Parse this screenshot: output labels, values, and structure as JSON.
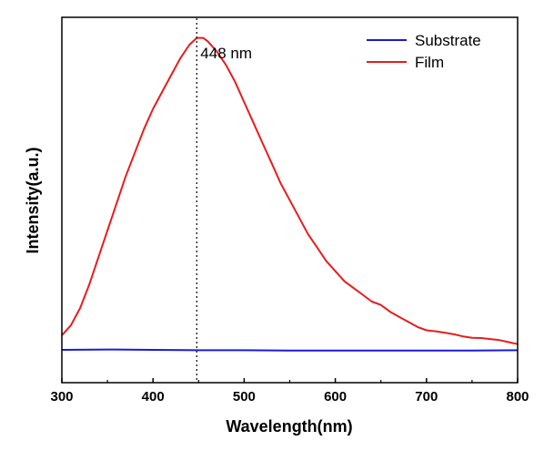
{
  "chart_data": {
    "type": "line",
    "title": "",
    "xlabel": "Wavelength(nm)",
    "ylabel": "Intensity(a.u.)",
    "xlim": [
      300,
      800
    ],
    "ylim": [
      0,
      1
    ],
    "x_ticks": [
      300,
      400,
      500,
      600,
      700,
      800
    ],
    "x_tick_labels": [
      "300",
      "400",
      "500",
      "600",
      "700",
      "800"
    ],
    "y_ticks_shown": false,
    "grid": false,
    "legend_position": "top-right",
    "annotation": {
      "text": "448 nm",
      "x": 448
    },
    "series": [
      {
        "name": "Substrate",
        "color": "#1a1adb",
        "x": [
          300,
          350,
          400,
          450,
          500,
          550,
          600,
          650,
          700,
          750,
          800
        ],
        "y": [
          0.097,
          0.098,
          0.097,
          0.096,
          0.096,
          0.095,
          0.095,
          0.095,
          0.095,
          0.095,
          0.096
        ]
      },
      {
        "name": "Film",
        "color": "#e81c1c",
        "x": [
          300,
          310,
          320,
          330,
          340,
          350,
          360,
          370,
          380,
          390,
          400,
          410,
          420,
          430,
          440,
          448,
          455,
          460,
          470,
          480,
          490,
          500,
          510,
          520,
          530,
          540,
          550,
          560,
          570,
          580,
          590,
          600,
          610,
          620,
          630,
          640,
          650,
          660,
          670,
          680,
          690,
          700,
          710,
          720,
          730,
          740,
          750,
          760,
          770,
          780,
          790,
          800
        ],
        "y": [
          0.14,
          0.17,
          0.22,
          0.29,
          0.37,
          0.45,
          0.53,
          0.61,
          0.68,
          0.75,
          0.81,
          0.86,
          0.91,
          0.96,
          1.0,
          1.02,
          1.02,
          1.01,
          0.98,
          0.94,
          0.89,
          0.83,
          0.77,
          0.71,
          0.65,
          0.59,
          0.54,
          0.49,
          0.44,
          0.4,
          0.36,
          0.33,
          0.3,
          0.28,
          0.26,
          0.24,
          0.23,
          0.21,
          0.195,
          0.18,
          0.165,
          0.155,
          0.152,
          0.148,
          0.143,
          0.137,
          0.133,
          0.132,
          0.129,
          0.126,
          0.12,
          0.114
        ]
      }
    ]
  }
}
